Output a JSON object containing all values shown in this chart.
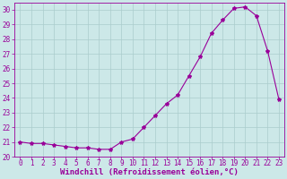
{
  "x": [
    0,
    1,
    2,
    3,
    4,
    5,
    6,
    7,
    8,
    9,
    10,
    11,
    12,
    13,
    14,
    15,
    16,
    17,
    18,
    19,
    20,
    21,
    22,
    23
  ],
  "y": [
    21.0,
    20.9,
    20.9,
    20.8,
    20.7,
    20.6,
    20.6,
    20.5,
    20.5,
    21.0,
    21.2,
    22.0,
    22.8,
    23.6,
    24.2,
    25.5,
    26.8,
    28.4,
    29.3,
    30.1,
    30.2,
    29.6,
    27.2,
    23.9
  ],
  "line_color": "#990099",
  "marker": "*",
  "marker_size": 3,
  "bg_color": "#cce8e8",
  "grid_color": "#aacccc",
  "xlim": [
    -0.5,
    23.5
  ],
  "ylim": [
    20,
    30.5
  ],
  "yticks": [
    20,
    21,
    22,
    23,
    24,
    25,
    26,
    27,
    28,
    29,
    30
  ],
  "xticks": [
    0,
    1,
    2,
    3,
    4,
    5,
    6,
    7,
    8,
    9,
    10,
    11,
    12,
    13,
    14,
    15,
    16,
    17,
    18,
    19,
    20,
    21,
    22,
    23
  ],
  "xlabel": "Windchill (Refroidissement éolien,°C)",
  "xlabel_color": "#990099",
  "tick_color": "#990099",
  "tick_fontsize": 5.5,
  "xlabel_fontsize": 6.5
}
